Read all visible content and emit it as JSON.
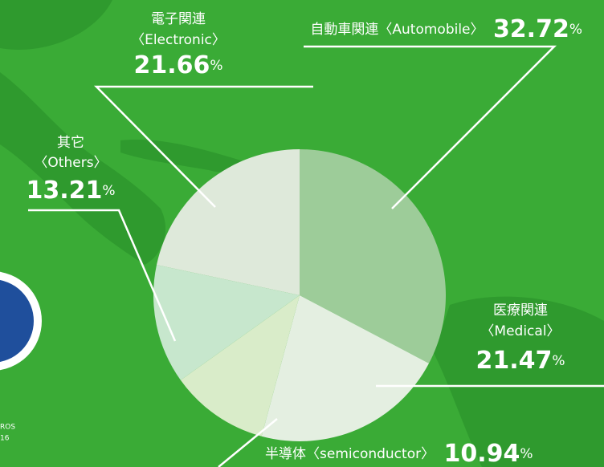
{
  "chart_data": {
    "type": "pie",
    "categories": [
      "自動車関連",
      "医療関連",
      "半導体",
      "其它",
      "電子関連"
    ],
    "categories_en": [
      "〈Automobile〉",
      "〈Medical〉",
      "〈semiconductor〉",
      "〈Others〉",
      "〈Electronic〉"
    ],
    "values": [
      32.72,
      21.47,
      10.94,
      13.21,
      21.66
    ],
    "unit": "%",
    "colors": [
      "#9dcc99",
      "#e4efe1",
      "#d9ecc9",
      "#c7e7cd",
      "#dee9da"
    ]
  },
  "badge": {
    "lines": [
      "ROS",
      "16"
    ]
  }
}
